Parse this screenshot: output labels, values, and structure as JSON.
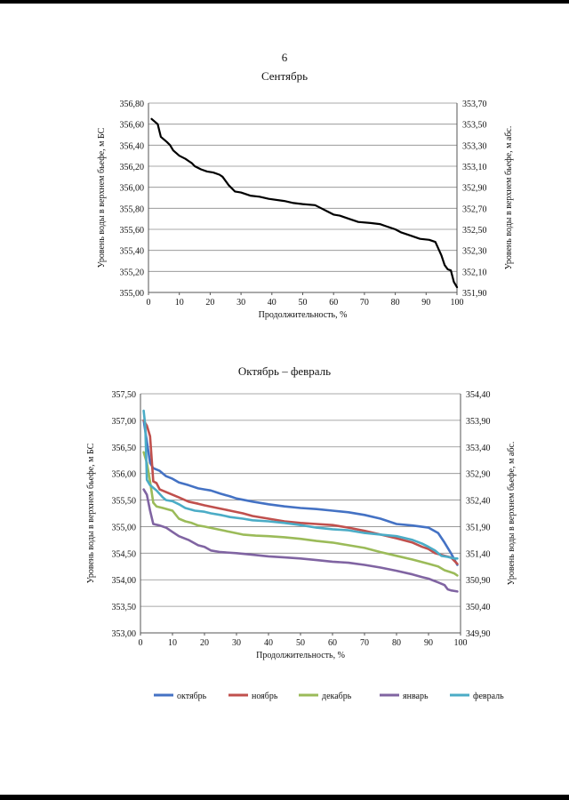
{
  "page_number": "6",
  "legend_labels": [
    "октябрь",
    "ноябрь",
    "декабрь",
    "январь",
    "февраль"
  ],
  "chart_data": [
    {
      "type": "line",
      "title": "Сентябрь",
      "xlabel": "Продолжительность, %",
      "ylabel": "Уровень воды в верхнем бьефе, м БС",
      "y2label": "Уровень воды в верхнем бьефе, м  абс.",
      "xlim": [
        0,
        100
      ],
      "ylim": [
        355.0,
        356.8
      ],
      "y2lim": [
        351.9,
        353.7
      ],
      "xticks": [
        "0",
        "10",
        "20",
        "30",
        "40",
        "50",
        "60",
        "70",
        "80",
        "90",
        "100"
      ],
      "yticks": [
        "355,00",
        "355,20",
        "355,40",
        "355,60",
        "355,80",
        "356,00",
        "356,20",
        "356,40",
        "356,60",
        "356,80"
      ],
      "y2ticks": [
        "351,90",
        "352,10",
        "352,30",
        "352,50",
        "352,70",
        "352,90",
        "353,10",
        "353,30",
        "353,50",
        "353,70"
      ],
      "series": [
        {
          "name": "сентябрь",
          "color": "#000000",
          "points": [
            [
              1,
              356.65
            ],
            [
              3,
              356.6
            ],
            [
              4,
              356.48
            ],
            [
              6,
              356.43
            ],
            [
              7,
              356.4
            ],
            [
              8,
              356.35
            ],
            [
              10,
              356.3
            ],
            [
              12,
              356.27
            ],
            [
              13,
              356.25
            ],
            [
              14,
              356.23
            ],
            [
              15,
              356.2
            ],
            [
              17,
              356.17
            ],
            [
              19,
              356.15
            ],
            [
              21,
              356.14
            ],
            [
              23,
              356.12
            ],
            [
              24,
              356.1
            ],
            [
              26,
              356.02
            ],
            [
              28,
              355.96
            ],
            [
              30,
              355.95
            ],
            [
              33,
              355.92
            ],
            [
              36,
              355.91
            ],
            [
              39,
              355.89
            ],
            [
              44,
              355.87
            ],
            [
              47,
              355.85
            ],
            [
              50,
              355.84
            ],
            [
              54,
              355.83
            ],
            [
              56,
              355.8
            ],
            [
              58,
              355.77
            ],
            [
              60,
              355.74
            ],
            [
              62,
              355.73
            ],
            [
              65,
              355.7
            ],
            [
              68,
              355.67
            ],
            [
              72,
              355.66
            ],
            [
              75,
              355.65
            ],
            [
              77,
              355.63
            ],
            [
              80,
              355.6
            ],
            [
              82,
              355.57
            ],
            [
              85,
              355.54
            ],
            [
              88,
              355.51
            ],
            [
              91,
              355.5
            ],
            [
              93,
              355.48
            ],
            [
              95,
              355.35
            ],
            [
              96,
              355.26
            ],
            [
              97,
              355.22
            ],
            [
              98,
              355.21
            ],
            [
              99,
              355.1
            ],
            [
              100,
              355.05
            ]
          ]
        }
      ]
    },
    {
      "type": "line",
      "title": "Октябрь – февраль",
      "xlabel": "Продолжительность, %",
      "ylabel": "Уровень воды в верхнем бьефе, м БС",
      "y2label": "Уровень воды в верхнем бьефе, м  абс.",
      "xlim": [
        0,
        100
      ],
      "ylim": [
        353.0,
        357.5
      ],
      "y2lim": [
        349.9,
        354.4
      ],
      "xticks": [
        "0",
        "10",
        "20",
        "30",
        "40",
        "50",
        "60",
        "70",
        "80",
        "90",
        "100"
      ],
      "yticks": [
        "353,00",
        "353,50",
        "354,00",
        "354,50",
        "355,00",
        "355,50",
        "356,00",
        "356,50",
        "357,00",
        "357,50"
      ],
      "y2ticks": [
        "349,90",
        "350,40",
        "350,90",
        "351,40",
        "351,90",
        "352,40",
        "352,90",
        "353,40",
        "353,90",
        "354,40"
      ],
      "legend": "bottom",
      "series": [
        {
          "name": "октябрь",
          "color": "#4472c4",
          "points": [
            [
              1,
              357.0
            ],
            [
              2,
              356.6
            ],
            [
              3,
              356.2
            ],
            [
              4,
              356.1
            ],
            [
              6,
              356.05
            ],
            [
              8,
              355.95
            ],
            [
              10,
              355.9
            ],
            [
              12,
              355.83
            ],
            [
              15,
              355.78
            ],
            [
              18,
              355.72
            ],
            [
              20,
              355.7
            ],
            [
              22,
              355.68
            ],
            [
              25,
              355.62
            ],
            [
              28,
              355.57
            ],
            [
              30,
              355.53
            ],
            [
              35,
              355.47
            ],
            [
              40,
              355.42
            ],
            [
              45,
              355.38
            ],
            [
              50,
              355.35
            ],
            [
              55,
              355.33
            ],
            [
              60,
              355.3
            ],
            [
              65,
              355.27
            ],
            [
              70,
              355.22
            ],
            [
              75,
              355.15
            ],
            [
              80,
              355.05
            ],
            [
              85,
              355.02
            ],
            [
              90,
              354.98
            ],
            [
              93,
              354.88
            ],
            [
              95,
              354.7
            ],
            [
              97,
              354.5
            ],
            [
              99,
              354.28
            ]
          ]
        },
        {
          "name": "ноябрь",
          "color": "#c0504d",
          "points": [
            [
              1,
              357.0
            ],
            [
              2,
              356.9
            ],
            [
              3,
              356.7
            ],
            [
              4,
              355.85
            ],
            [
              5,
              355.82
            ],
            [
              6,
              355.7
            ],
            [
              8,
              355.65
            ],
            [
              10,
              355.6
            ],
            [
              12,
              355.55
            ],
            [
              15,
              355.47
            ],
            [
              18,
              355.43
            ],
            [
              20,
              355.4
            ],
            [
              24,
              355.35
            ],
            [
              28,
              355.3
            ],
            [
              32,
              355.25
            ],
            [
              35,
              355.2
            ],
            [
              40,
              355.15
            ],
            [
              45,
              355.1
            ],
            [
              50,
              355.07
            ],
            [
              55,
              355.05
            ],
            [
              60,
              355.03
            ],
            [
              65,
              354.98
            ],
            [
              70,
              354.92
            ],
            [
              75,
              354.85
            ],
            [
              80,
              354.78
            ],
            [
              85,
              354.7
            ],
            [
              88,
              354.62
            ],
            [
              90,
              354.58
            ],
            [
              92,
              354.5
            ],
            [
              95,
              354.45
            ],
            [
              97,
              354.42
            ],
            [
              99,
              354.3
            ]
          ]
        },
        {
          "name": "декабрь",
          "color": "#9bbb59",
          "points": [
            [
              1,
              356.4
            ],
            [
              2,
              356.2
            ],
            [
              3,
              355.85
            ],
            [
              4,
              355.45
            ],
            [
              5,
              355.38
            ],
            [
              7,
              355.35
            ],
            [
              10,
              355.3
            ],
            [
              12,
              355.15
            ],
            [
              14,
              355.1
            ],
            [
              16,
              355.07
            ],
            [
              18,
              355.02
            ],
            [
              20,
              355.0
            ],
            [
              24,
              354.95
            ],
            [
              28,
              354.9
            ],
            [
              32,
              354.85
            ],
            [
              36,
              354.83
            ],
            [
              40,
              354.82
            ],
            [
              45,
              354.8
            ],
            [
              50,
              354.77
            ],
            [
              55,
              354.73
            ],
            [
              60,
              354.7
            ],
            [
              65,
              354.65
            ],
            [
              70,
              354.6
            ],
            [
              75,
              354.52
            ],
            [
              80,
              354.45
            ],
            [
              85,
              354.38
            ],
            [
              90,
              354.3
            ],
            [
              93,
              354.25
            ],
            [
              95,
              354.18
            ],
            [
              98,
              354.12
            ],
            [
              99,
              354.08
            ]
          ]
        },
        {
          "name": "январь",
          "color": "#8064a2",
          "points": [
            [
              1,
              355.7
            ],
            [
              2,
              355.6
            ],
            [
              3,
              355.3
            ],
            [
              4,
              355.05
            ],
            [
              6,
              355.02
            ],
            [
              8,
              354.98
            ],
            [
              10,
              354.9
            ],
            [
              12,
              354.82
            ],
            [
              15,
              354.75
            ],
            [
              18,
              354.65
            ],
            [
              20,
              354.62
            ],
            [
              22,
              354.55
            ],
            [
              25,
              354.52
            ],
            [
              30,
              354.5
            ],
            [
              35,
              354.47
            ],
            [
              40,
              354.44
            ],
            [
              45,
              354.42
            ],
            [
              50,
              354.4
            ],
            [
              55,
              354.37
            ],
            [
              60,
              354.34
            ],
            [
              65,
              354.32
            ],
            [
              70,
              354.28
            ],
            [
              75,
              354.23
            ],
            [
              80,
              354.17
            ],
            [
              85,
              354.1
            ],
            [
              88,
              354.05
            ],
            [
              90,
              354.02
            ],
            [
              93,
              353.95
            ],
            [
              95,
              353.9
            ],
            [
              96,
              353.82
            ],
            [
              97,
              353.8
            ],
            [
              99,
              353.78
            ]
          ]
        },
        {
          "name": "февраль",
          "color": "#4bacc6",
          "points": [
            [
              1,
              357.18
            ],
            [
              1.5,
              356.9
            ],
            [
              2,
              355.88
            ],
            [
              3,
              355.78
            ],
            [
              5,
              355.68
            ],
            [
              7,
              355.55
            ],
            [
              8,
              355.5
            ],
            [
              10,
              355.48
            ],
            [
              12,
              355.42
            ],
            [
              14,
              355.35
            ],
            [
              17,
              355.3
            ],
            [
              20,
              355.28
            ],
            [
              22,
              355.25
            ],
            [
              25,
              355.22
            ],
            [
              28,
              355.18
            ],
            [
              32,
              355.15
            ],
            [
              35,
              355.12
            ],
            [
              40,
              355.1
            ],
            [
              45,
              355.07
            ],
            [
              50,
              355.03
            ],
            [
              55,
              354.98
            ],
            [
              60,
              354.95
            ],
            [
              65,
              354.93
            ],
            [
              70,
              354.88
            ],
            [
              75,
              354.85
            ],
            [
              80,
              354.82
            ],
            [
              85,
              354.75
            ],
            [
              88,
              354.68
            ],
            [
              90,
              354.62
            ],
            [
              92,
              354.55
            ],
            [
              94,
              354.45
            ],
            [
              96,
              354.43
            ],
            [
              98,
              354.4
            ],
            [
              99,
              354.4
            ]
          ]
        }
      ]
    }
  ]
}
